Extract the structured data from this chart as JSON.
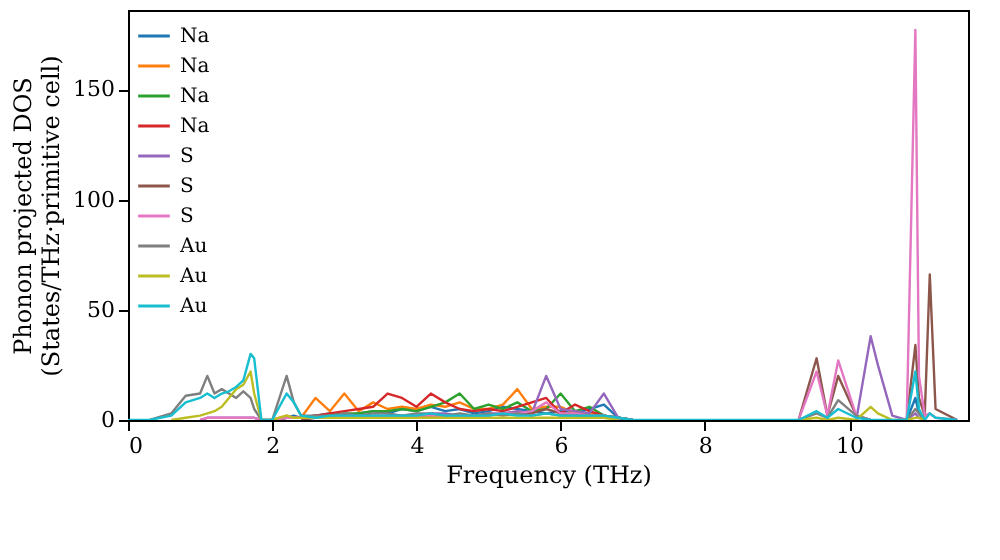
{
  "chart_data": {
    "type": "line",
    "xlabel": "Frequency (THz)",
    "ylabel": "Phonon projected DOS\n(States/THz·primitive cell)",
    "xlim": [
      0,
      11.65
    ],
    "xticks": [
      0,
      2,
      4,
      6,
      8,
      10
    ],
    "ylim": [
      0,
      186
    ],
    "yticks": [
      0,
      50,
      100,
      150
    ],
    "grid": false,
    "legend": "top left",
    "marker": "none",
    "line_style": "solid",
    "x": [
      0,
      0.3,
      0.6,
      0.8,
      1.0,
      1.1,
      1.2,
      1.3,
      1.4,
      1.5,
      1.6,
      1.7,
      1.75,
      1.85,
      2.0,
      2.2,
      2.3,
      2.4,
      2.6,
      2.8,
      3.0,
      3.2,
      3.4,
      3.6,
      3.8,
      4.0,
      4.2,
      4.4,
      4.6,
      4.8,
      5.0,
      5.2,
      5.4,
      5.6,
      5.8,
      6.0,
      6.2,
      6.4,
      6.6,
      6.8,
      7.0,
      9.0,
      9.3,
      9.55,
      9.7,
      9.85,
      10.1,
      10.3,
      10.4,
      10.6,
      10.8,
      10.92,
      10.97,
      11.05,
      11.12,
      11.2,
      11.5
    ],
    "series": [
      {
        "name": "Na",
        "color": "#1f77b4",
        "values": [
          null,
          null,
          null,
          null,
          null,
          null,
          null,
          null,
          null,
          null,
          null,
          null,
          null,
          null,
          0,
          1,
          2,
          1,
          2,
          3,
          2,
          3,
          4,
          3,
          5,
          4,
          6,
          4,
          5,
          3,
          4,
          6,
          5,
          4,
          3,
          4,
          3,
          5,
          7,
          1,
          0,
          null,
          null,
          null,
          null,
          null,
          null,
          null,
          null,
          null,
          0,
          10,
          3,
          0,
          null,
          null,
          null
        ]
      },
      {
        "name": "Na",
        "color": "#ff7f0e",
        "values": [
          null,
          null,
          null,
          null,
          null,
          null,
          null,
          null,
          null,
          null,
          null,
          null,
          null,
          null,
          0,
          2,
          1,
          1,
          10,
          4,
          12,
          4,
          8,
          5,
          6,
          5,
          7,
          6,
          8,
          5,
          5,
          7,
          14,
          5,
          6,
          6,
          3,
          3,
          2,
          1,
          0,
          null,
          null,
          null,
          null,
          null,
          null,
          null,
          null,
          null,
          null,
          null,
          null,
          null,
          null,
          null,
          null
        ]
      },
      {
        "name": "Na",
        "color": "#2ca02c",
        "values": [
          null,
          null,
          null,
          null,
          null,
          null,
          null,
          null,
          null,
          null,
          null,
          null,
          null,
          null,
          0,
          1,
          1,
          1,
          2,
          2,
          3,
          3,
          4,
          4,
          5,
          4,
          6,
          8,
          12,
          5,
          7,
          5,
          8,
          4,
          5,
          12,
          4,
          6,
          2,
          1,
          0,
          null,
          null,
          null,
          null,
          null,
          null,
          null,
          null,
          null,
          null,
          null,
          null,
          null,
          null,
          null,
          null
        ]
      },
      {
        "name": "Na",
        "color": "#d62728",
        "values": [
          null,
          null,
          null,
          null,
          null,
          null,
          null,
          null,
          null,
          null,
          null,
          null,
          null,
          null,
          0,
          1,
          1,
          1,
          2,
          3,
          4,
          5,
          6,
          12,
          10,
          6,
          12,
          8,
          5,
          4,
          5,
          4,
          6,
          8,
          10,
          3,
          7,
          4,
          2,
          1,
          0,
          null,
          null,
          null,
          null,
          null,
          null,
          null,
          null,
          null,
          null,
          null,
          null,
          null,
          null,
          null,
          null
        ]
      },
      {
        "name": "S",
        "color": "#9467bd",
        "values": [
          null,
          null,
          null,
          null,
          0,
          1,
          1,
          1,
          1,
          1,
          1,
          1,
          1,
          0,
          0,
          1,
          1,
          1,
          1,
          1,
          1,
          1,
          2,
          2,
          2,
          2,
          3,
          3,
          2,
          2,
          3,
          3,
          4,
          3,
          20,
          5,
          4,
          3,
          12,
          1,
          0,
          null,
          null,
          null,
          null,
          null,
          0,
          38,
          25,
          2,
          0,
          3,
          1,
          0,
          null,
          null,
          null
        ]
      },
      {
        "name": "S",
        "color": "#8c564b",
        "values": [
          null,
          null,
          null,
          null,
          null,
          null,
          null,
          null,
          null,
          null,
          null,
          null,
          null,
          null,
          null,
          null,
          null,
          0,
          1,
          1,
          1,
          1,
          1,
          1,
          1,
          1,
          2,
          2,
          2,
          2,
          2,
          3,
          3,
          3,
          5,
          3,
          2,
          2,
          2,
          0,
          null,
          null,
          0,
          28,
          2,
          20,
          2,
          0,
          null,
          null,
          0,
          34,
          10,
          2,
          66,
          5,
          0
        ]
      },
      {
        "name": "S",
        "color": "#e377c2",
        "values": [
          null,
          null,
          null,
          null,
          0,
          1,
          1,
          1,
          1,
          1,
          1,
          1,
          1,
          0,
          0,
          1,
          1,
          1,
          1,
          1,
          1,
          1,
          1,
          1,
          1,
          2,
          2,
          2,
          2,
          2,
          2,
          3,
          3,
          4,
          8,
          3,
          3,
          2,
          2,
          0,
          null,
          null,
          0,
          22,
          2,
          27,
          2,
          0,
          null,
          null,
          0,
          177,
          20,
          2,
          3,
          1,
          0
        ]
      },
      {
        "name": "Au",
        "color": "#7f7f7f",
        "values": [
          null,
          0,
          3,
          11,
          12,
          20,
          12,
          14,
          12,
          10,
          13,
          10,
          5,
          0,
          0,
          20,
          8,
          2,
          2,
          2,
          3,
          2,
          3,
          3,
          2,
          3,
          3,
          2,
          3,
          2,
          3,
          2,
          3,
          2,
          3,
          2,
          2,
          2,
          2,
          1,
          0,
          null,
          0,
          3,
          1,
          9,
          2,
          0,
          null,
          null,
          0,
          5,
          3,
          0,
          null,
          null,
          null
        ]
      },
      {
        "name": "Au",
        "color": "#bcbd22",
        "values": [
          null,
          null,
          0,
          1,
          2,
          3,
          4,
          6,
          10,
          14,
          16,
          22,
          12,
          0,
          0,
          2,
          1,
          1,
          1,
          1,
          1,
          1,
          1,
          1,
          1,
          1,
          1,
          1,
          1,
          1,
          1,
          1,
          1,
          1,
          1,
          1,
          1,
          1,
          1,
          0,
          null,
          null,
          0,
          1,
          0,
          1,
          0,
          6,
          3,
          0,
          0,
          1,
          1,
          0,
          null,
          null,
          null
        ]
      },
      {
        "name": "Au",
        "color": "#17becf",
        "values": [
          0,
          0,
          2,
          8,
          10,
          12,
          10,
          12,
          13,
          15,
          18,
          30,
          28,
          0,
          0,
          12,
          8,
          2,
          1,
          2,
          2,
          2,
          2,
          2,
          2,
          2,
          3,
          2,
          2,
          2,
          2,
          3,
          2,
          2,
          3,
          2,
          2,
          2,
          2,
          1,
          0,
          0,
          0,
          4,
          1,
          5,
          1,
          0,
          0,
          0,
          0,
          22,
          5,
          0,
          3,
          1,
          0
        ]
      }
    ]
  }
}
